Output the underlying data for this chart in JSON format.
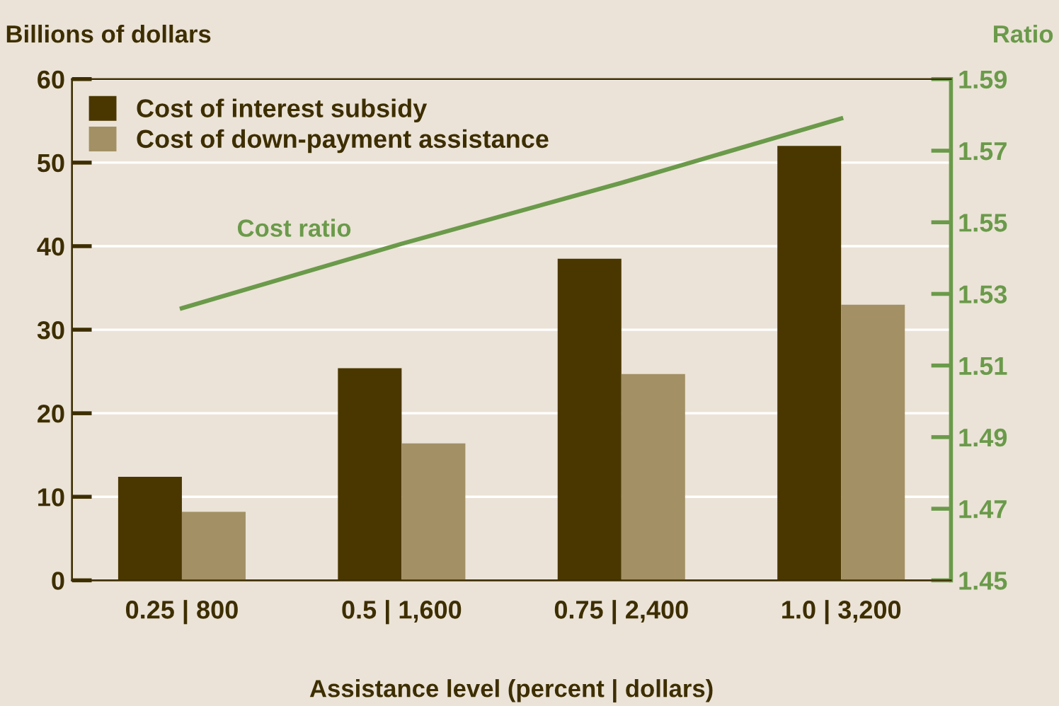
{
  "chart_data": {
    "type": "bar",
    "xlabel": "Assistance level (percent | dollars)",
    "ylabel": "Billions of dollars",
    "y2label": "Ratio",
    "categories": [
      "0.25 | 800",
      "0.5 | 1,600",
      "0.75 | 2,400",
      "1.0 | 3,200"
    ],
    "series": [
      {
        "name": "Cost of interest subsidy",
        "color": "#4a3700",
        "values": [
          12.4,
          25.4,
          38.5,
          52.0
        ]
      },
      {
        "name": "Cost of down-payment assistance",
        "color": "#a39065",
        "values": [
          8.2,
          16.4,
          24.7,
          33.0
        ]
      },
      {
        "name": "Cost ratio",
        "type": "line",
        "axis": "y2",
        "color": "#6a9a4a",
        "values": [
          1.526,
          1.544,
          1.561,
          1.579
        ]
      }
    ],
    "ylim": [
      0,
      60
    ],
    "yticks": [
      0,
      10,
      20,
      30,
      40,
      50,
      60
    ],
    "y2lim": [
      1.45,
      1.59
    ],
    "y2ticks": [
      1.45,
      1.47,
      1.49,
      1.51,
      1.53,
      1.55,
      1.57,
      1.59
    ],
    "grid": "y",
    "legend": "top left",
    "marker": "none",
    "line_style": "solid"
  }
}
